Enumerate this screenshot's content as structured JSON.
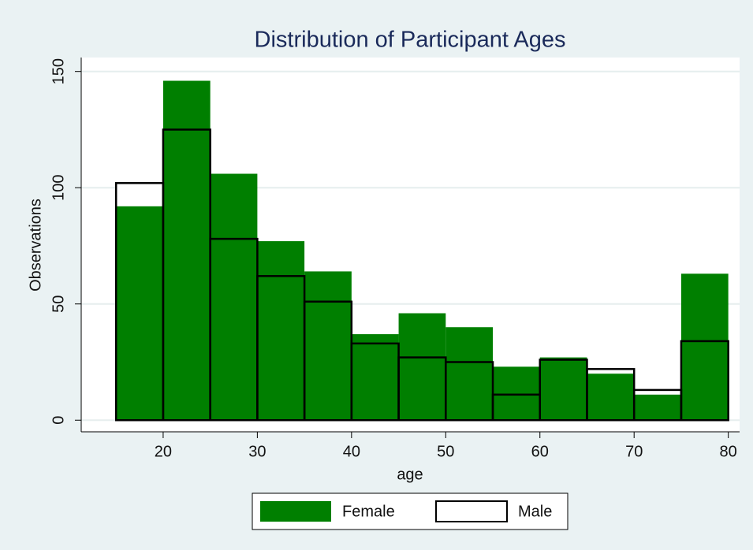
{
  "chart_data": {
    "type": "histogram",
    "title": "Distribution of Participant Ages",
    "xlabel": "age",
    "ylabel": "Observations",
    "bins": [
      15,
      20,
      25,
      30,
      35,
      40,
      45,
      50,
      55,
      60,
      65,
      70,
      75,
      80
    ],
    "series": [
      {
        "name": "Female",
        "color": "#007f00",
        "values": [
          92,
          146,
          106,
          77,
          64,
          37,
          46,
          40,
          23,
          27,
          20,
          11,
          63
        ]
      },
      {
        "name": "Male",
        "color": "#000000",
        "values": [
          102,
          125,
          78,
          62,
          51,
          33,
          27,
          25,
          11,
          26,
          22,
          13,
          34
        ]
      }
    ],
    "xlim": [
      11.3,
      81.2
    ],
    "xticks": [
      20,
      30,
      40,
      50,
      60,
      70,
      80
    ],
    "ylim": [
      -5,
      156
    ],
    "yticks": [
      0,
      50,
      100,
      150
    ],
    "grid": true
  }
}
